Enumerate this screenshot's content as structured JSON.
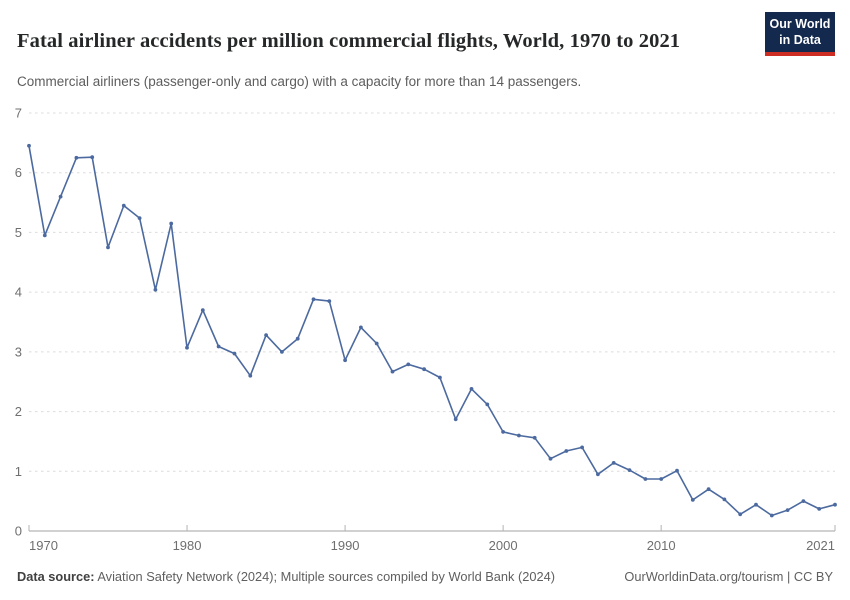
{
  "header": {
    "title": "Fatal airliner accidents per million commercial flights, World, 1970 to 2021",
    "subtitle": "Commercial airliners (passenger-only and cargo) with a capacity for more than 14 passengers.",
    "logo": {
      "line1": "Our World",
      "line2": "in Data",
      "bg_color": "#13294D",
      "accent_color": "#CE2D24"
    }
  },
  "footer": {
    "source_label": "Data source:",
    "source_text": " Aviation Safety Network (2024); Multiple sources compiled by World Bank (2024)",
    "link_text": "OurWorldinData.org/tourism | CC BY"
  },
  "chart_data": {
    "type": "line",
    "title": "Fatal airliner accidents per million commercial flights, World, 1970 to 2021",
    "subtitle": "Commercial airliners (passenger-only and cargo) with a capacity for more than 14 passengers.",
    "xlabel": "",
    "ylabel": "",
    "xlim": [
      1970,
      2021
    ],
    "ylim": [
      0,
      7
    ],
    "xticks": [
      1970,
      1980,
      1990,
      2000,
      2010,
      2021
    ],
    "yticks": [
      0,
      1,
      2,
      3,
      4,
      5,
      6,
      7
    ],
    "grid": "horizontal-dashed",
    "legend": "none",
    "x": [
      1970,
      1971,
      1972,
      1973,
      1974,
      1975,
      1976,
      1977,
      1978,
      1979,
      1980,
      1981,
      1982,
      1983,
      1984,
      1985,
      1986,
      1987,
      1988,
      1989,
      1990,
      1991,
      1992,
      1993,
      1994,
      1995,
      1996,
      1997,
      1998,
      1999,
      2000,
      2001,
      2002,
      2003,
      2004,
      2005,
      2006,
      2007,
      2008,
      2009,
      2010,
      2011,
      2012,
      2013,
      2014,
      2015,
      2016,
      2017,
      2018,
      2019,
      2020,
      2021
    ],
    "series": [
      {
        "name": "World",
        "color": "#4C6A9F",
        "values": [
          6.45,
          4.95,
          5.6,
          6.25,
          6.26,
          4.75,
          5.45,
          5.24,
          4.04,
          5.15,
          3.07,
          3.7,
          3.09,
          2.97,
          2.6,
          3.28,
          3.0,
          3.22,
          3.88,
          3.85,
          2.86,
          3.41,
          3.14,
          2.67,
          2.79,
          2.71,
          2.57,
          1.87,
          2.38,
          2.12,
          1.66,
          1.6,
          1.56,
          1.21,
          1.34,
          1.4,
          0.95,
          1.14,
          1.02,
          0.87,
          0.87,
          1.01,
          0.52,
          0.7,
          0.53,
          0.28,
          0.44,
          0.26,
          0.35,
          0.5,
          0.37,
          0.44
        ]
      }
    ]
  }
}
